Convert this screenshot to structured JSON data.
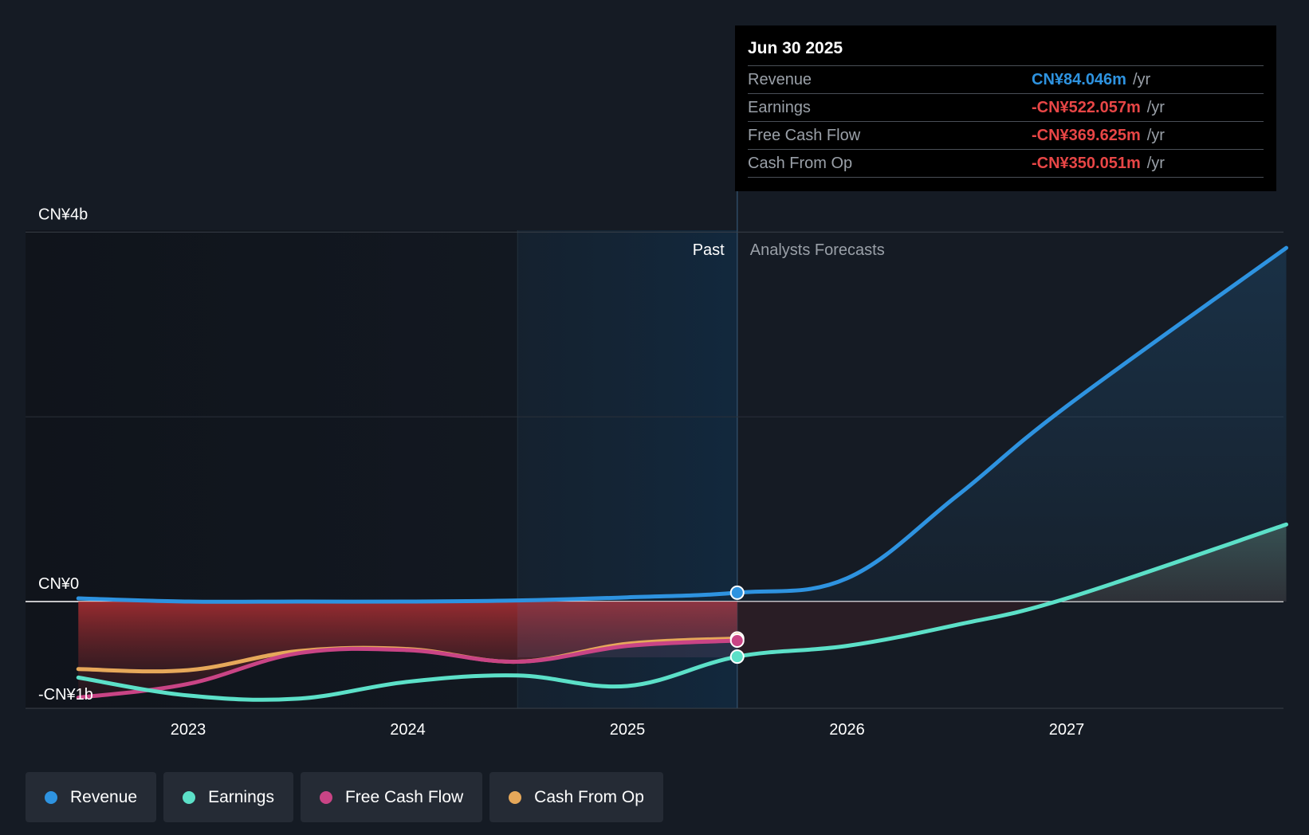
{
  "colors": {
    "background": "#151b24",
    "revenue": "#2e93e0",
    "earnings": "#5ce0c8",
    "free_cash_flow": "#c94485",
    "cash_from_op": "#e6a85a",
    "negative": "#e84646"
  },
  "tooltip": {
    "date": "Jun 30 2025",
    "rows": [
      {
        "name": "Revenue",
        "value": "CN¥84.046m",
        "unit": "/yr",
        "color": "#2e93e0"
      },
      {
        "name": "Earnings",
        "value": "-CN¥522.057m",
        "unit": "/yr",
        "color": "#e84646"
      },
      {
        "name": "Free Cash Flow",
        "value": "-CN¥369.625m",
        "unit": "/yr",
        "color": "#e84646"
      },
      {
        "name": "Cash From Op",
        "value": "-CN¥350.051m",
        "unit": "/yr",
        "color": "#e84646"
      }
    ]
  },
  "legend": [
    {
      "label": "Revenue",
      "color": "#2e93e0"
    },
    {
      "label": "Earnings",
      "color": "#5ce0c8"
    },
    {
      "label": "Free Cash Flow",
      "color": "#c94485"
    },
    {
      "label": "Cash From Op",
      "color": "#e6a85a"
    }
  ],
  "chart_data": {
    "type": "line",
    "title": "",
    "y_unit": "CN¥ billions",
    "ylim": [
      -1.0,
      3.5
    ],
    "y_ticks": [
      {
        "value": 3.5,
        "label": "CN¥4b"
      },
      {
        "value": 0,
        "label": "CN¥0"
      },
      {
        "value": -0.8,
        "label": "-CN¥1b"
      }
    ],
    "xlim": [
      2022.5,
      2028.0
    ],
    "x_ticks": [
      {
        "value": 2023,
        "label": "2023"
      },
      {
        "value": 2024,
        "label": "2024"
      },
      {
        "value": 2025,
        "label": "2025"
      },
      {
        "value": 2026,
        "label": "2026"
      },
      {
        "value": 2027,
        "label": "2027"
      }
    ],
    "regions": {
      "past_label": "Past",
      "forecast_label": "Analysts Forecasts",
      "highlight_start": 2024.5,
      "divider": 2025.5
    },
    "series": [
      {
        "name": "Revenue",
        "key": "revenue",
        "points": [
          [
            2022.5,
            0.03
          ],
          [
            2023.0,
            0.0
          ],
          [
            2023.5,
            0.0
          ],
          [
            2024.0,
            0.0
          ],
          [
            2024.5,
            0.01
          ],
          [
            2025.0,
            0.04
          ],
          [
            2025.5,
            0.084
          ],
          [
            2026.0,
            0.22
          ],
          [
            2026.5,
            1.0
          ],
          [
            2027.0,
            1.85
          ],
          [
            2028.0,
            3.35
          ]
        ]
      },
      {
        "name": "Earnings",
        "key": "earnings",
        "points": [
          [
            2022.5,
            -0.72
          ],
          [
            2023.0,
            -0.89
          ],
          [
            2023.5,
            -0.92
          ],
          [
            2024.0,
            -0.76
          ],
          [
            2024.5,
            -0.7
          ],
          [
            2025.0,
            -0.8
          ],
          [
            2025.5,
            -0.522
          ],
          [
            2026.0,
            -0.42
          ],
          [
            2026.5,
            -0.22
          ],
          [
            2027.0,
            0.03
          ],
          [
            2028.0,
            0.73
          ]
        ]
      },
      {
        "name": "Free Cash Flow",
        "key": "free_cash_flow",
        "points": [
          [
            2022.5,
            -0.91
          ],
          [
            2023.0,
            -0.78
          ],
          [
            2023.5,
            -0.49
          ],
          [
            2024.0,
            -0.46
          ],
          [
            2024.5,
            -0.57
          ],
          [
            2025.0,
            -0.42
          ],
          [
            2025.5,
            -0.37
          ]
        ]
      },
      {
        "name": "Cash From Op",
        "key": "cash_from_op",
        "points": [
          [
            2022.5,
            -0.64
          ],
          [
            2023.0,
            -0.65
          ],
          [
            2023.5,
            -0.47
          ],
          [
            2024.0,
            -0.45
          ],
          [
            2024.5,
            -0.57
          ],
          [
            2025.0,
            -0.4
          ],
          [
            2025.5,
            -0.35
          ]
        ]
      }
    ]
  }
}
